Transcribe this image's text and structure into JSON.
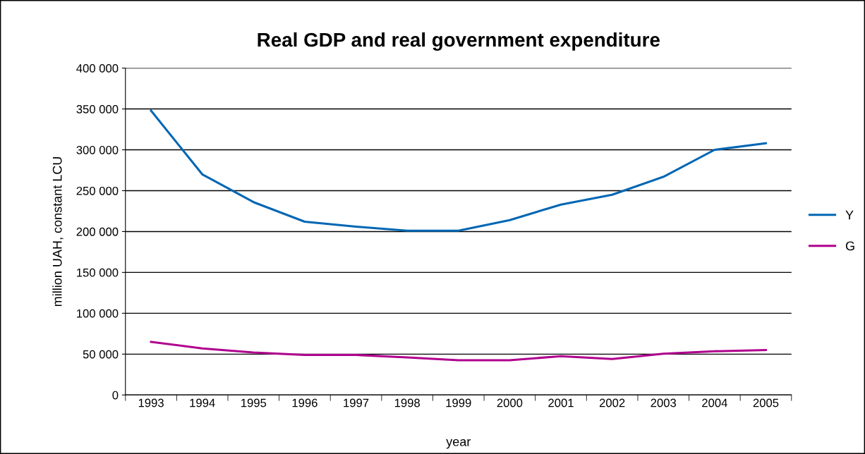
{
  "chart_data": {
    "type": "line",
    "title": "Real GDP and real government expenditure",
    "xlabel": "year",
    "ylabel": "million UAH, constant LCU",
    "categories": [
      "1993",
      "1994",
      "1995",
      "1996",
      "1997",
      "1998",
      "1999",
      "2000",
      "2001",
      "2002",
      "2003",
      "2004",
      "2005"
    ],
    "series": [
      {
        "name": "Y",
        "color": "#0066b3",
        "values": [
          348000,
          270000,
          236000,
          212000,
          206000,
          201000,
          201000,
          214000,
          233000,
          245000,
          267000,
          300000,
          308000
        ]
      },
      {
        "name": "G",
        "color": "#b0008e",
        "values": [
          65000,
          57000,
          52000,
          49000,
          49000,
          46000,
          42500,
          42500,
          47500,
          44000,
          50500,
          53500,
          55000
        ]
      }
    ],
    "ylim": [
      0,
      400000
    ],
    "yticks": [
      0,
      {
        "value": 50000,
        "label": "50 000"
      },
      {
        "value": 100000,
        "label": "100 000"
      },
      {
        "value": 150000,
        "label": "150 000"
      },
      {
        "value": 200000,
        "label": "200 000"
      },
      {
        "value": 250000,
        "label": "250 000"
      },
      {
        "value": 300000,
        "label": "300 000"
      },
      {
        "value": 350000,
        "label": "350 000"
      },
      {
        "value": 400000,
        "label": "400 000"
      }
    ],
    "grid": "y",
    "legend": "right",
    "marker": "none",
    "line_style": "solid"
  }
}
